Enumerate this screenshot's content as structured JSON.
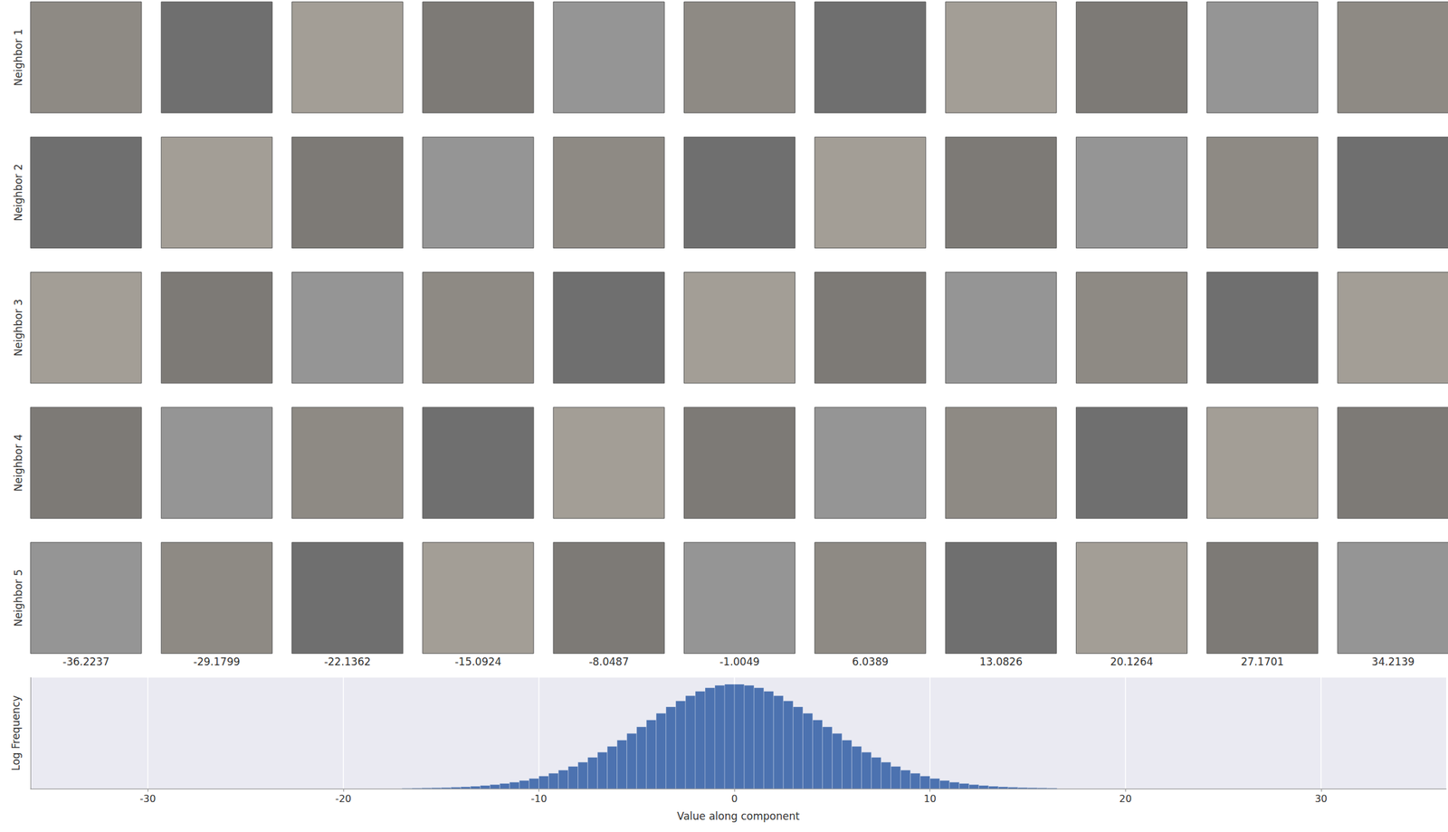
{
  "chart_data": {
    "type": "histogram",
    "x_label": "Value along component",
    "y_label": "Log Frequency",
    "bins": [
      -17,
      -16.5,
      -16,
      -15.5,
      -15,
      -14.5,
      -14,
      -13.5,
      -13,
      -12.5,
      -12,
      -11.5,
      -11,
      -10.5,
      -10,
      -9.5,
      -9,
      -8.5,
      -8,
      -7.5,
      -7,
      -6.5,
      -6,
      -5.5,
      -5,
      -4.5,
      -4,
      -3.5,
      -3,
      -2.5,
      -2,
      -1.5,
      -1,
      -0.5,
      0,
      0.5,
      1,
      1.5,
      2,
      2.5,
      3,
      3.5,
      4,
      4.5,
      5,
      5.5,
      6,
      6.5,
      7,
      7.5,
      8,
      8.5,
      9,
      9.5,
      10,
      10.5,
      11,
      11.5,
      12,
      12.5,
      13,
      13.5,
      14,
      14.5,
      15,
      15.5,
      16,
      16.5
    ],
    "values": [
      0.02,
      0.03,
      0.04,
      0.05,
      0.06,
      0.08,
      0.1,
      0.13,
      0.17,
      0.22,
      0.28,
      0.35,
      0.44,
      0.55,
      0.68,
      0.83,
      1.0,
      1.2,
      1.43,
      1.69,
      1.97,
      2.28,
      2.62,
      2.98,
      3.34,
      3.71,
      4.07,
      4.42,
      4.74,
      5.02,
      5.26,
      5.45,
      5.58,
      5.64,
      5.64,
      5.58,
      5.45,
      5.26,
      5.02,
      4.74,
      4.42,
      4.07,
      3.71,
      3.34,
      2.98,
      2.62,
      2.28,
      1.97,
      1.69,
      1.43,
      1.2,
      1.0,
      0.83,
      0.68,
      0.55,
      0.44,
      0.35,
      0.28,
      0.22,
      0.17,
      0.13,
      0.1,
      0.08,
      0.06,
      0.05,
      0.04,
      0.03
    ],
    "color": "#4c72b0",
    "xlim": [
      -36,
      36.4
    ],
    "xticks": [
      -30,
      -20,
      -10,
      0,
      10,
      20,
      30
    ],
    "ylim": [
      0,
      6
    ],
    "yticks": [],
    "tick_labels": "x",
    "grid": true
  },
  "image_grid": {
    "row_labels": [
      "Neighbor 1",
      "Neighbor 2",
      "Neighbor 3",
      "Neighbor 4",
      "Neighbor 5"
    ],
    "column_values": [
      -36.2237,
      -29.1799,
      -22.1362,
      -15.0924,
      -8.0487,
      -1.0049,
      6.0389,
      13.0826,
      20.1264,
      27.1701,
      34.2139
    ]
  }
}
